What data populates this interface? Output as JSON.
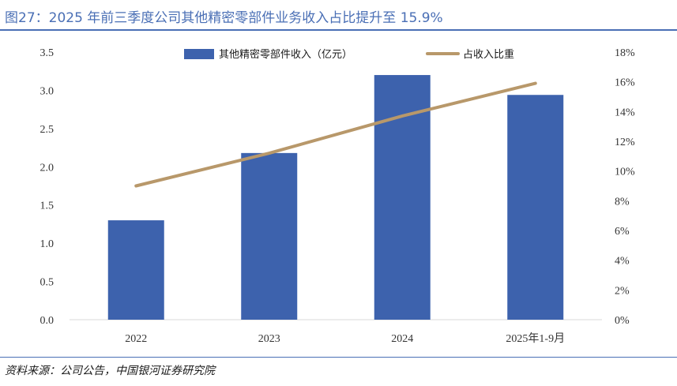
{
  "header": {
    "title": "图27：2025 年前三季度公司其他精密零部件业务收入占比提升至 15.9%"
  },
  "footer": {
    "source": "资料来源：公司公告，中国银河证券研究院"
  },
  "colors": {
    "bar": "#3d62ad",
    "line": "#b8986a",
    "accent": "#4a6fb5"
  },
  "chart_data": {
    "type": "bar",
    "categories": [
      "2022",
      "2023",
      "2024",
      "2025年1-9月"
    ],
    "series": [
      {
        "name": "其他精密零部件收入（亿元）",
        "type": "bar",
        "axis": "left",
        "values": [
          1.3,
          2.18,
          3.2,
          2.94
        ]
      },
      {
        "name": "占收入比重",
        "type": "line",
        "axis": "right",
        "values": [
          0.09,
          0.112,
          0.137,
          0.159
        ]
      }
    ],
    "y_left": {
      "min": 0,
      "max": 3.5,
      "ticks": [
        "0.0",
        "0.5",
        "1.0",
        "1.5",
        "2.0",
        "2.5",
        "3.0",
        "3.5"
      ]
    },
    "y_right": {
      "min": 0,
      "max": 0.18,
      "ticks": [
        "0%",
        "2%",
        "4%",
        "6%",
        "8%",
        "10%",
        "12%",
        "14%",
        "16%",
        "18%"
      ]
    },
    "legend_position": "top-center",
    "grid": false
  }
}
